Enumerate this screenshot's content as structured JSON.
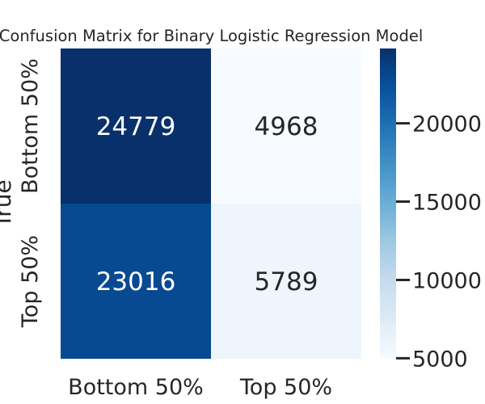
{
  "chart_data": {
    "type": "heatmap",
    "title": "Confusion Matrix for Binary Logistic Regression Model",
    "ylabel": "True",
    "xlabel": "",
    "x_categories": [
      "Bottom 50%",
      "Top 50%"
    ],
    "y_categories": [
      "Bottom 50%",
      "Top 50%"
    ],
    "values": [
      [
        24779,
        4968
      ],
      [
        23016,
        5789
      ]
    ],
    "colorbar": {
      "colormap": "Blues",
      "range": [
        4968,
        24779
      ],
      "ticks": [
        5000,
        10000,
        15000,
        20000
      ],
      "tick_labels": [
        "5000",
        "10000",
        "15000",
        "20000"
      ]
    },
    "colors": {
      "cell_bottom_bottom": "#08306b",
      "cell_bottom_top": "#f7fbff",
      "cell_top_bottom": "#084a91",
      "cell_top_top": "#eef5fc"
    }
  }
}
